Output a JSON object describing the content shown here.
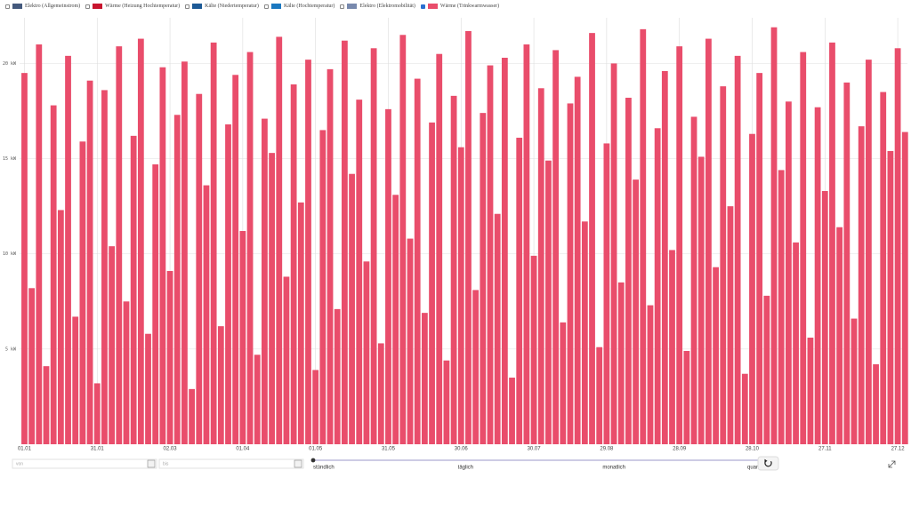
{
  "chart_data": {
    "type": "bar",
    "series": [
      {
        "name": "Elektro (Allgemeinstrom)",
        "color": "#44597d",
        "visible": false
      },
      {
        "name": "Wärme (Heizung Hochtemperatur)",
        "color": "#c8142e",
        "visible": false
      },
      {
        "name": "Kälte (Niedertemperatur)",
        "color": "#1d5a96",
        "visible": false
      },
      {
        "name": "Kälte (Hochtemperatur)",
        "color": "#1b78c0",
        "visible": false
      },
      {
        "name": "Elektro (Elektromobilität)",
        "color": "#7889ad",
        "visible": false
      },
      {
        "name": "Wärme (Trinkwarmwasser)",
        "color": "#e94d6b",
        "visible": true,
        "x": [
          0,
          3,
          6,
          9,
          12,
          15,
          18,
          21,
          24,
          27,
          30,
          33,
          36,
          39,
          42,
          45,
          48,
          51,
          54,
          57,
          60,
          63,
          66,
          69,
          72,
          75,
          78,
          81,
          84,
          87,
          90,
          93,
          96,
          99,
          102,
          105,
          108,
          111,
          114,
          117,
          120,
          123,
          126,
          129,
          132,
          135,
          138,
          141,
          144,
          147,
          150,
          153,
          156,
          159,
          162,
          165,
          168,
          171,
          174,
          177,
          180,
          183,
          186,
          189,
          192,
          195,
          198,
          201,
          204,
          207,
          210,
          213,
          216,
          219,
          222,
          225,
          228,
          231,
          234,
          237,
          240,
          243,
          246,
          249,
          252,
          255,
          258,
          261,
          264,
          267,
          270,
          273,
          276,
          279,
          282,
          285,
          288,
          291,
          294,
          297,
          300,
          303,
          306,
          309,
          312,
          315,
          318,
          321,
          324,
          327,
          330,
          333,
          336,
          339,
          342,
          345,
          348,
          351,
          354,
          357,
          360,
          363
        ],
        "values": [
          19.5,
          8.2,
          21.0,
          4.1,
          17.8,
          12.3,
          20.4,
          6.7,
          15.9,
          19.1,
          3.2,
          18.6,
          10.4,
          20.9,
          7.5,
          16.2,
          21.3,
          5.8,
          14.7,
          19.8,
          9.1,
          17.3,
          20.1,
          2.9,
          18.4,
          13.6,
          21.1,
          6.2,
          16.8,
          19.4,
          11.2,
          20.6,
          4.7,
          17.1,
          15.3,
          21.4,
          8.8,
          18.9,
          12.7,
          20.2,
          3.9,
          16.5,
          19.7,
          7.1,
          21.2,
          14.2,
          18.1,
          9.6,
          20.8,
          5.3,
          17.6,
          13.1,
          21.5,
          10.8,
          19.2,
          6.9,
          16.9,
          20.5,
          4.4,
          18.3,
          15.6,
          21.7,
          8.1,
          17.4,
          19.9,
          12.1,
          20.3,
          3.5,
          16.1,
          21.0,
          9.9,
          18.7,
          14.9,
          20.7,
          6.4,
          17.9,
          19.3,
          11.7,
          21.6,
          5.1,
          15.8,
          20.0,
          8.5,
          18.2,
          13.9,
          21.8,
          7.3,
          16.6,
          19.6,
          10.2,
          20.9,
          4.9,
          17.2,
          15.1,
          21.3,
          9.3,
          18.8,
          12.5,
          20.4,
          3.7,
          16.3,
          19.5,
          7.8,
          21.9,
          14.4,
          18.0,
          10.6,
          20.6,
          5.6,
          17.7,
          13.3,
          21.1,
          11.4,
          19.0,
          6.6,
          16.7,
          20.2,
          4.2,
          18.5,
          15.4,
          20.8,
          16.4
        ]
      }
    ],
    "ylim": [
      0,
      22.4
    ],
    "yticks": [
      {
        "value": 5,
        "label": "5 kW"
      },
      {
        "value": 10,
        "label": "10 kW"
      },
      {
        "value": 15,
        "label": "15 kW"
      },
      {
        "value": 20,
        "label": "20 kW"
      }
    ],
    "xlim": [
      -2,
      364
    ],
    "xticks": [
      {
        "value": 0,
        "label": "01.01"
      },
      {
        "value": 30,
        "label": "31.01"
      },
      {
        "value": 60,
        "label": "02.03"
      },
      {
        "value": 90,
        "label": "01.04"
      },
      {
        "value": 120,
        "label": "01.05"
      },
      {
        "value": 150,
        "label": "31.05"
      },
      {
        "value": 180,
        "label": "30.06"
      },
      {
        "value": 210,
        "label": "30.07"
      },
      {
        "value": 240,
        "label": "29.08"
      },
      {
        "value": 270,
        "label": "28.09"
      },
      {
        "value": 300,
        "label": "28.10"
      },
      {
        "value": 330,
        "label": "27.11"
      },
      {
        "value": 360,
        "label": "27.12"
      }
    ],
    "grid": true
  },
  "controls": {
    "from_placeholder": "von",
    "to_placeholder": "bis",
    "resolution": [
      "stündlich",
      "täglich",
      "monatlich",
      "quartal"
    ]
  }
}
